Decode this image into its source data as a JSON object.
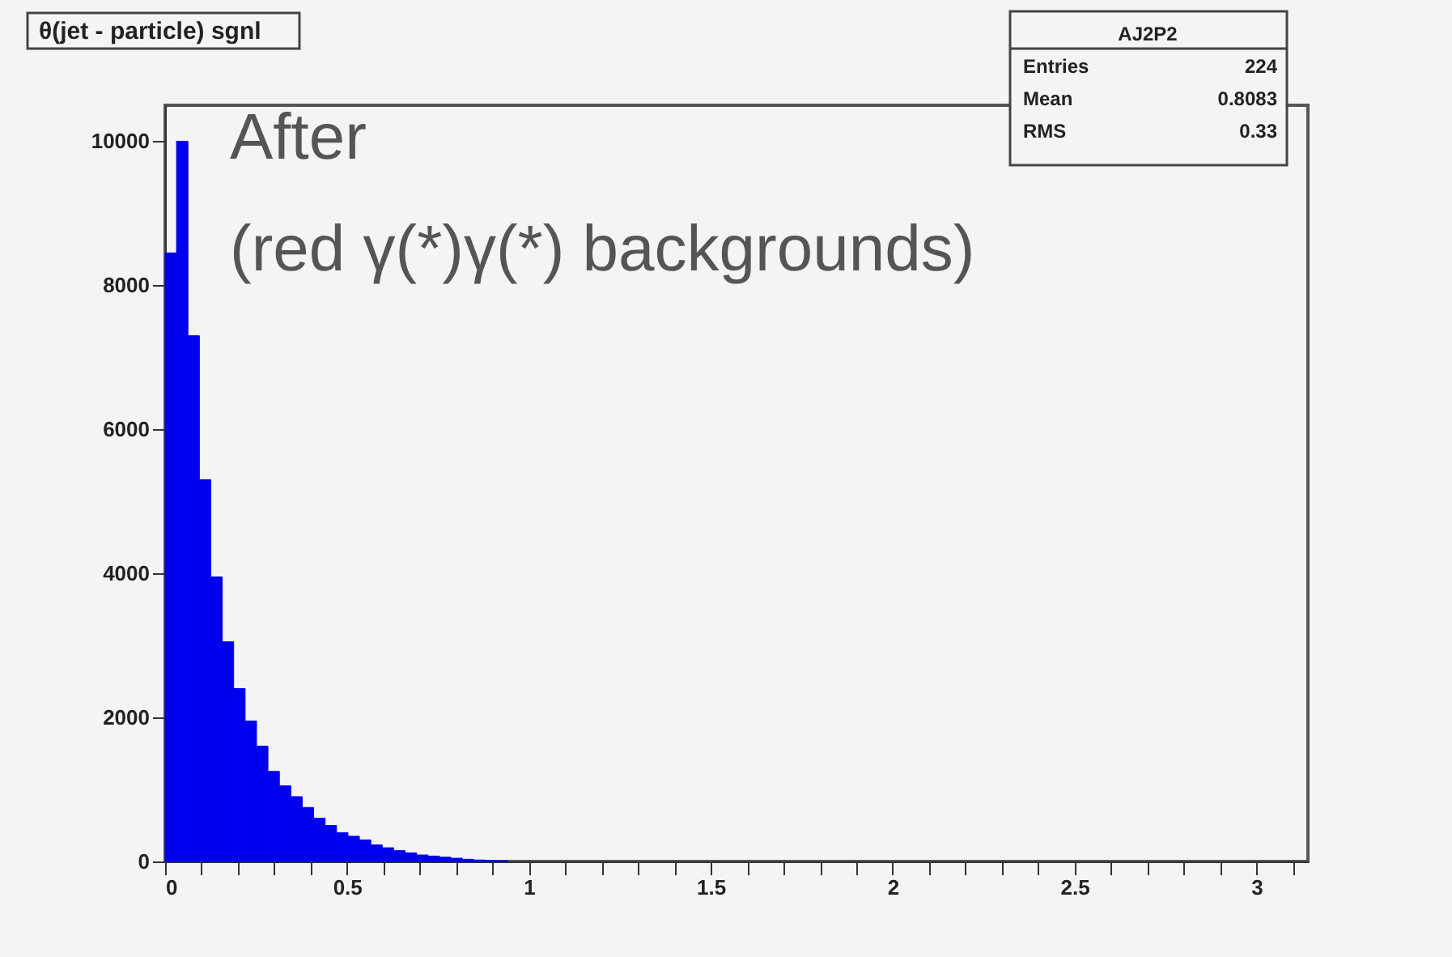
{
  "chart_data": {
    "type": "histogram",
    "title": "θ(jet - particle) sgnl",
    "bins": [
      0,
      0.0314,
      0.0628,
      0.0942,
      0.1257,
      0.1571,
      0.1885,
      0.2199,
      0.2513,
      0.2827,
      0.3142,
      0.3456,
      0.377,
      0.4084,
      0.4398,
      0.4712,
      0.5027,
      0.5341,
      0.5655,
      0.5969,
      0.6283,
      0.6597,
      0.6912,
      0.7226,
      0.754,
      0.7854,
      0.8168,
      0.8482,
      0.8796,
      0.911,
      0.9425
    ],
    "values": [
      8450,
      10000,
      7300,
      5300,
      3950,
      3050,
      2400,
      1950,
      1600,
      1250,
      1050,
      900,
      750,
      600,
      500,
      400,
      350,
      300,
      230,
      190,
      150,
      120,
      90,
      75,
      60,
      45,
      30,
      20,
      15,
      10
    ],
    "color": "#0000ee",
    "xlim": [
      0,
      3.1416
    ],
    "ylim": [
      0,
      10500
    ],
    "xticks": [
      0,
      {
        "value": 0.1,
        "label": null
      },
      {
        "value": 0.2,
        "label": null
      },
      {
        "value": 0.3,
        "label": null
      },
      {
        "value": 0.4,
        "label": null
      },
      0.5,
      {
        "value": 0.6,
        "label": null
      },
      {
        "value": 0.7,
        "label": null
      },
      {
        "value": 0.8,
        "label": null
      },
      {
        "value": 0.9,
        "label": null
      },
      1,
      {
        "value": 1.1,
        "label": null
      },
      {
        "value": 1.2,
        "label": null
      },
      {
        "value": 1.3,
        "label": null
      },
      {
        "value": 1.4,
        "label": null
      },
      1.5,
      {
        "value": 1.6,
        "label": null
      },
      {
        "value": 1.7,
        "label": null
      },
      {
        "value": 1.8,
        "label": null
      },
      {
        "value": 1.9,
        "label": null
      },
      2,
      {
        "value": 2.1,
        "label": null
      },
      {
        "value": 2.2,
        "label": null
      },
      {
        "value": 2.3,
        "label": null
      },
      {
        "value": 2.4,
        "label": null
      },
      2.5,
      {
        "value": 2.6,
        "label": null
      },
      {
        "value": 2.7,
        "label": null
      },
      {
        "value": 2.8,
        "label": null
      },
      {
        "value": 2.9,
        "label": null
      },
      3,
      {
        "value": 3.1,
        "label": null
      }
    ],
    "yticks": [
      0,
      2000,
      4000,
      6000,
      8000,
      10000
    ],
    "grid": false,
    "annotations": [
      "After",
      "(red γ(*)γ(*) backgrounds)",
      "AJ2P2",
      "Entries",
      "224",
      "Mean",
      "0.8083",
      "RMS",
      "0.33"
    ]
  }
}
